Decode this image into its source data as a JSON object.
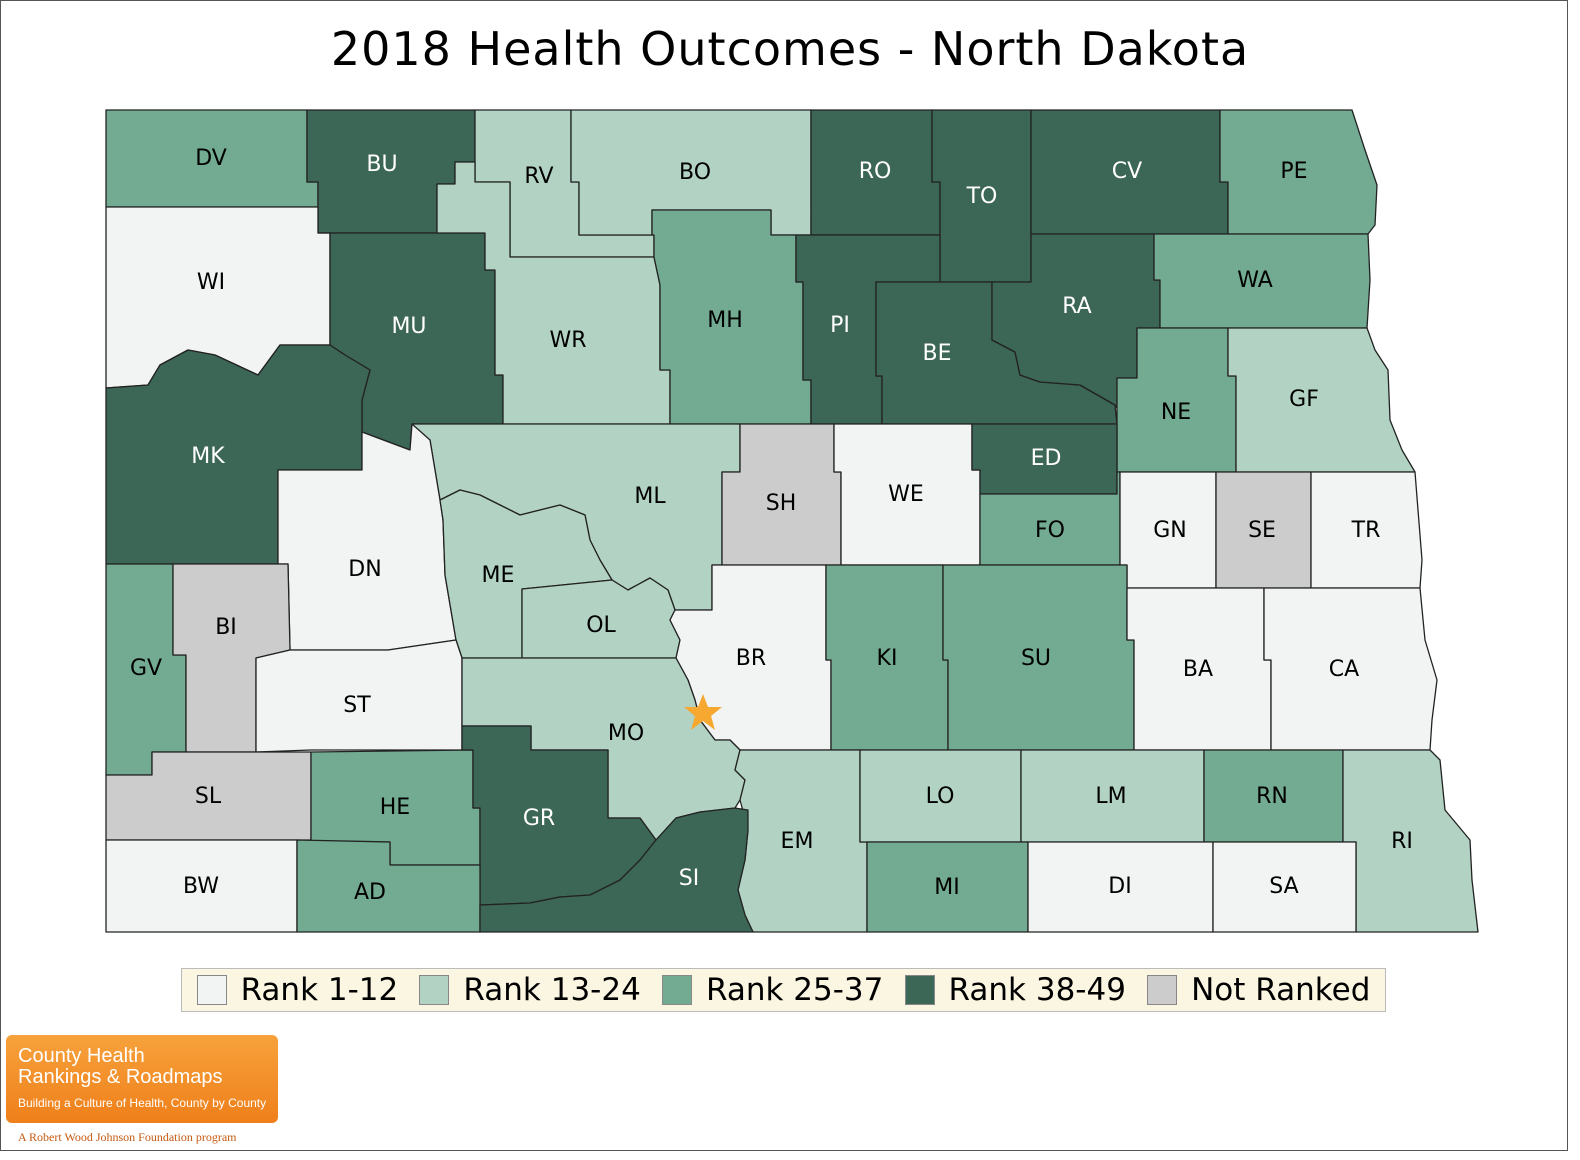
{
  "title": "2018 Health Outcomes - North Dakota",
  "colors": {
    "rank_1_12": "#f1f4f2",
    "rank_13_24": "#b2d3c4",
    "rank_25_37": "#72ab91",
    "rank_38_49": "#3c6656",
    "not_ranked": "#cccccc",
    "label_dark": "#000000",
    "label_light": "#ffffff",
    "star": "#f7a830"
  },
  "legend": [
    {
      "label": "Rank 1-12",
      "class": "rank_1_12"
    },
    {
      "label": "Rank 13-24",
      "class": "rank_13_24"
    },
    {
      "label": "Rank 25-37",
      "class": "rank_25_37"
    },
    {
      "label": "Rank 38-49",
      "class": "rank_38_49"
    },
    {
      "label": "Not Ranked",
      "class": "not_ranked"
    }
  ],
  "counties": [
    {
      "abbr": "DV",
      "class": "rank_25_37"
    },
    {
      "abbr": "BU",
      "class": "rank_38_49"
    },
    {
      "abbr": "RV",
      "class": "rank_13_24"
    },
    {
      "abbr": "BO",
      "class": "rank_13_24"
    },
    {
      "abbr": "RO",
      "class": "rank_38_49"
    },
    {
      "abbr": "TO",
      "class": "rank_38_49"
    },
    {
      "abbr": "CV",
      "class": "rank_38_49"
    },
    {
      "abbr": "PE",
      "class": "rank_25_37"
    },
    {
      "abbr": "WI",
      "class": "rank_1_12"
    },
    {
      "abbr": "MU",
      "class": "rank_38_49"
    },
    {
      "abbr": "WR",
      "class": "rank_13_24"
    },
    {
      "abbr": "MH",
      "class": "rank_25_37"
    },
    {
      "abbr": "PI",
      "class": "rank_38_49"
    },
    {
      "abbr": "BE",
      "class": "rank_38_49"
    },
    {
      "abbr": "RA",
      "class": "rank_38_49"
    },
    {
      "abbr": "WA",
      "class": "rank_25_37"
    },
    {
      "abbr": "NE",
      "class": "rank_25_37"
    },
    {
      "abbr": "GF",
      "class": "rank_13_24"
    },
    {
      "abbr": "MK",
      "class": "rank_38_49"
    },
    {
      "abbr": "ML",
      "class": "rank_13_24"
    },
    {
      "abbr": "SH",
      "class": "not_ranked"
    },
    {
      "abbr": "WE",
      "class": "rank_1_12"
    },
    {
      "abbr": "ED",
      "class": "rank_38_49"
    },
    {
      "abbr": "DN",
      "class": "rank_1_12"
    },
    {
      "abbr": "ME",
      "class": "rank_13_24"
    },
    {
      "abbr": "FO",
      "class": "rank_25_37"
    },
    {
      "abbr": "GN",
      "class": "rank_1_12"
    },
    {
      "abbr": "SE",
      "class": "not_ranked"
    },
    {
      "abbr": "TR",
      "class": "rank_1_12"
    },
    {
      "abbr": "GV",
      "class": "rank_25_37"
    },
    {
      "abbr": "BI",
      "class": "not_ranked"
    },
    {
      "abbr": "OL",
      "class": "rank_13_24"
    },
    {
      "abbr": "BR",
      "class": "rank_1_12"
    },
    {
      "abbr": "KI",
      "class": "rank_25_37"
    },
    {
      "abbr": "SU",
      "class": "rank_25_37"
    },
    {
      "abbr": "BA",
      "class": "rank_1_12"
    },
    {
      "abbr": "CA",
      "class": "rank_1_12"
    },
    {
      "abbr": "ST",
      "class": "rank_1_12"
    },
    {
      "abbr": "MO",
      "class": "rank_13_24"
    },
    {
      "abbr": "SL",
      "class": "not_ranked"
    },
    {
      "abbr": "HE",
      "class": "rank_25_37"
    },
    {
      "abbr": "GR",
      "class": "rank_38_49"
    },
    {
      "abbr": "EM",
      "class": "rank_13_24"
    },
    {
      "abbr": "LO",
      "class": "rank_13_24"
    },
    {
      "abbr": "LM",
      "class": "rank_13_24"
    },
    {
      "abbr": "RN",
      "class": "rank_25_37"
    },
    {
      "abbr": "RI",
      "class": "rank_13_24"
    },
    {
      "abbr": "BW",
      "class": "rank_1_12"
    },
    {
      "abbr": "AD",
      "class": "rank_25_37"
    },
    {
      "abbr": "SI",
      "class": "rank_38_49"
    },
    {
      "abbr": "MI",
      "class": "rank_25_37"
    },
    {
      "abbr": "DI",
      "class": "rank_1_12"
    },
    {
      "abbr": "SA",
      "class": "rank_1_12"
    }
  ],
  "capital_marker": "star-icon",
  "logo": {
    "line1": "County Health",
    "line2": "Rankings & Roadmaps",
    "tagline": "Building a Culture of Health, County by County",
    "sub": "A Robert Wood Johnson Foundation program"
  }
}
